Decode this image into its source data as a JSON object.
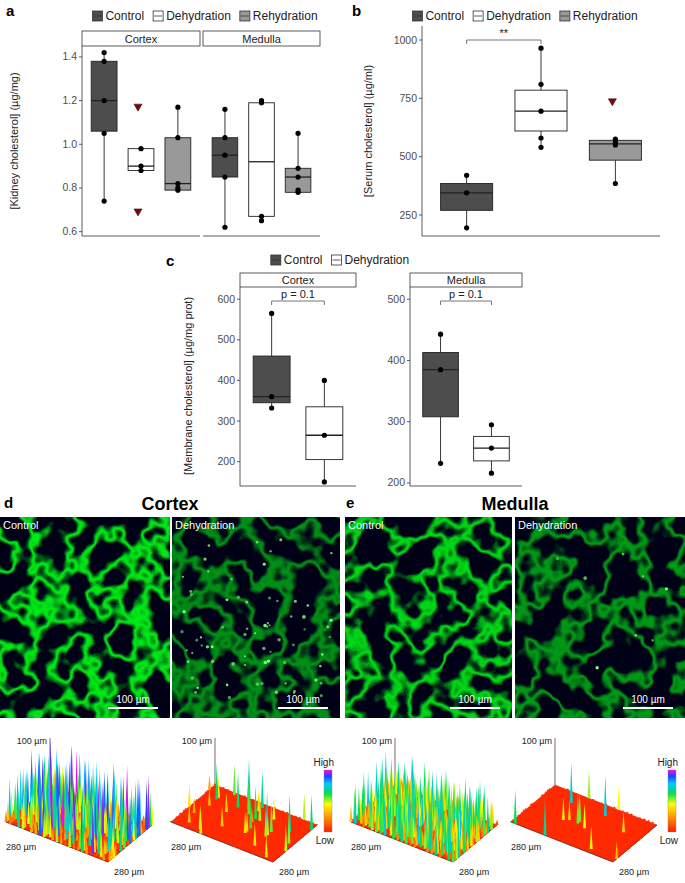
{
  "chart_data": [
    {
      "type": "box",
      "title": "a",
      "y_label": "[Kidney cholesterol] (µg/mg)",
      "legend": "top",
      "tick_labels": "y",
      "ylim": [
        0.58,
        1.45
      ],
      "yticks": [
        0.6,
        0.8,
        {
          "value": 1,
          "label": "1.0"
        },
        1.2,
        1.4
      ],
      "facets": [
        {
          "name": "Cortex"
        },
        {
          "name": "Medulla"
        }
      ],
      "series": [
        {
          "name": "Control",
          "color": "#4d4d4d",
          "boxes": [
            {
              "min": 0.74,
              "q1": 1.06,
              "median": 1.2,
              "q3": 1.38,
              "max": 1.42,
              "points": [
                1.42,
                1.38,
                1.2,
                1.05,
                0.74
              ],
              "outliers": []
            },
            {
              "min": 0.62,
              "q1": 0.85,
              "median": 0.95,
              "q3": 1.03,
              "max": 1.16,
              "points": [
                1.16,
                1.03,
                0.95,
                0.85,
                0.62
              ],
              "outliers": []
            }
          ]
        },
        {
          "name": "Dehydration",
          "color": "#ffffff",
          "boxes": [
            {
              "min": 0.87,
              "q1": 0.88,
              "median": 0.9,
              "q3": 0.98,
              "max": 0.98,
              "points": [
                0.98,
                0.9,
                0.88
              ],
              "outliers": [
                1.17,
                0.69
              ]
            },
            {
              "min": 0.65,
              "q1": 0.67,
              "median": 0.92,
              "q3": 1.19,
              "max": 1.2,
              "points": [
                1.2,
                1.19,
                0.67,
                0.65
              ],
              "outliers": []
            }
          ]
        },
        {
          "name": "Rehydration",
          "color": "#999999",
          "boxes": [
            {
              "min": 0.78,
              "q1": 0.79,
              "median": 0.82,
              "q3": 1.03,
              "max": 1.17,
              "points": [
                1.17,
                1.03,
                0.82,
                0.8,
                0.79
              ],
              "outliers": []
            },
            {
              "min": 0.77,
              "q1": 0.78,
              "median": 0.85,
              "q3": 0.89,
              "max": 1.05,
              "points": [
                1.05,
                0.89,
                0.85,
                0.79,
                0.78
              ],
              "outliers": []
            }
          ]
        }
      ]
    },
    {
      "type": "box",
      "title": "b",
      "y_label": "[Serum cholesterol] (µg/ml)",
      "legend": "top",
      "tick_labels": "y",
      "ylim": [
        160,
        1060
      ],
      "yticks": [
        250,
        500,
        750,
        1000
      ],
      "annotations": [
        {
          "text": "**",
          "between": [
            0,
            1
          ]
        }
      ],
      "series": [
        {
          "name": "Control",
          "color": "#4d4d4d",
          "boxes": [
            {
              "min": 195,
              "q1": 270,
              "median": 345,
              "q3": 385,
              "max": 420,
              "points": [
                420,
                345,
                195
              ],
              "outliers": []
            }
          ]
        },
        {
          "name": "Dehydration",
          "color": "#ffffff",
          "boxes": [
            {
              "min": 540,
              "q1": 610,
              "median": 695,
              "q3": 785,
              "max": 965,
              "points": [
                965,
                810,
                695,
                580,
                540
              ],
              "outliers": []
            }
          ]
        },
        {
          "name": "Rehydration",
          "color": "#999999",
          "boxes": [
            {
              "min": 385,
              "q1": 485,
              "median": 555,
              "q3": 570,
              "max": 575,
              "points": [
                575,
                560,
                550,
                385
              ],
              "outliers": [
                735
              ]
            }
          ]
        }
      ]
    },
    {
      "type": "box",
      "title": "c",
      "y_label": "[Membrane cholesterol] (µg/mg prot)",
      "legend": "top",
      "tick_labels": "y",
      "facets": [
        {
          "name": "Cortex",
          "ylim": [
            140,
            630
          ],
          "yticks": [
            200,
            300,
            400,
            500,
            600
          ],
          "annotations": [
            {
              "text": "p = 0.1",
              "between": [
                0,
                1
              ]
            }
          ]
        },
        {
          "name": "Medulla",
          "ylim": [
            195,
            520
          ],
          "yticks": [
            200,
            300,
            400,
            500
          ],
          "annotations": [
            {
              "text": "p = 0.1",
              "between": [
                0,
                1
              ]
            }
          ]
        }
      ],
      "series": [
        {
          "name": "Control",
          "color": "#4d4d4d",
          "boxes": [
            {
              "min": 332,
              "q1": 345,
              "median": 360,
              "q3": 460,
              "max": 565,
              "points": [
                565,
                360,
                332
              ],
              "outliers": []
            },
            {
              "min": 232,
              "q1": 308,
              "median": 385,
              "q3": 413,
              "max": 443,
              "points": [
                443,
                385,
                232
              ],
              "outliers": []
            }
          ]
        },
        {
          "name": "Dehydration",
          "color": "#ffffff",
          "boxes": [
            {
              "min": 150,
              "q1": 205,
              "median": 265,
              "q3": 335,
              "max": 400,
              "points": [
                400,
                265,
                150
              ],
              "outliers": []
            },
            {
              "min": 216,
              "q1": 236,
              "median": 257,
              "q3": 276,
              "max": 295,
              "points": [
                295,
                257,
                216
              ],
              "outliers": []
            }
          ]
        }
      ]
    }
  ],
  "figure_panels": [
    {
      "letter": "d",
      "title": "Cortex",
      "images": [
        {
          "label": "Control",
          "scale_bar": "100 µm"
        },
        {
          "label": "Dehydration",
          "scale_bar": "100 µm"
        }
      ],
      "surface_axes": [
        "100 µm",
        "280 µm",
        "280 µm"
      ],
      "colorbar": {
        "high": "High",
        "low": "Low"
      }
    },
    {
      "letter": "e",
      "title": "Medulla",
      "images": [
        {
          "label": "Control",
          "scale_bar": "100 µm"
        },
        {
          "label": "Dehydration",
          "scale_bar": "100 µm"
        }
      ],
      "surface_axes": [
        "100 µm",
        "280 µm",
        "280 µm"
      ],
      "colorbar": {
        "high": "High",
        "low": "Low"
      }
    }
  ]
}
